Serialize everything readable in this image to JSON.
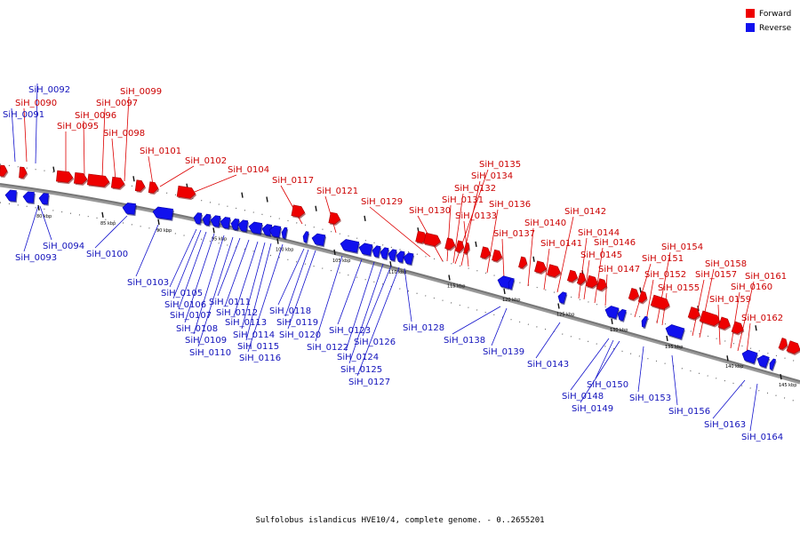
{
  "legend": {
    "forward": {
      "label": "Forward",
      "color": "#ee0000"
    },
    "reverse": {
      "label": "Reverse",
      "color": "#1111ee"
    }
  },
  "caption": "Sulfolobus islandicus HVE10/4, complete genome. - 0..2655201",
  "kbp_ticks": [
    "80 kbp",
    "85 kbp",
    "90 kbp",
    "95 kbp",
    "100 kbp",
    "105 kbp",
    "110 kbp",
    "115 kbp",
    "120 kbp",
    "125 kbp",
    "130 kbp",
    "135 kbp",
    "140 kbp",
    "145 kbp"
  ],
  "forward_genes": [
    "SiH_0090",
    "SiH_0095",
    "SiH_0096",
    "SiH_0097",
    "SiH_0098",
    "SiH_0099",
    "SiH_0101",
    "SiH_0102",
    "SiH_0104",
    "SiH_0117",
    "SiH_0121",
    "SiH_0129",
    "SiH_0130",
    "SiH_0131",
    "SiH_0132",
    "SiH_0133",
    "SiH_0134",
    "SiH_0135",
    "SiH_0136",
    "SiH_0137",
    "SiH_0140",
    "SiH_0141",
    "SiH_0142",
    "SiH_0144",
    "SiH_0145",
    "SiH_0146",
    "SiH_0147",
    "SiH_0151",
    "SiH_0152",
    "SiH_0154",
    "SiH_0155",
    "SiH_0157",
    "SiH_0158",
    "SiH_0159",
    "SiH_0160",
    "SiH_0161",
    "SiH_0162"
  ],
  "reverse_genes": [
    "SiH_0091",
    "SiH_0092",
    "SiH_0093",
    "SiH_0094",
    "SiH_0100",
    "SiH_0103",
    "SiH_0105",
    "SiH_0106",
    "SiH_0107",
    "SiH_0108",
    "SiH_0109",
    "SiH_0110",
    "SiH_0111",
    "SiH_0112",
    "SiH_0113",
    "SiH_0114",
    "SiH_0115",
    "SiH_0116",
    "SiH_0118",
    "SiH_0119",
    "SiH_0120",
    "SiH_0122",
    "SiH_0123",
    "SiH_0124",
    "SiH_0125",
    "SiH_0126",
    "SiH_0127",
    "SiH_0128",
    "SiH_0138",
    "SiH_0139",
    "SiH_0143",
    "SiH_0148",
    "SiH_0149",
    "SiH_0150",
    "SiH_0153",
    "SiH_0156",
    "SiH_0163",
    "SiH_0164"
  ]
}
